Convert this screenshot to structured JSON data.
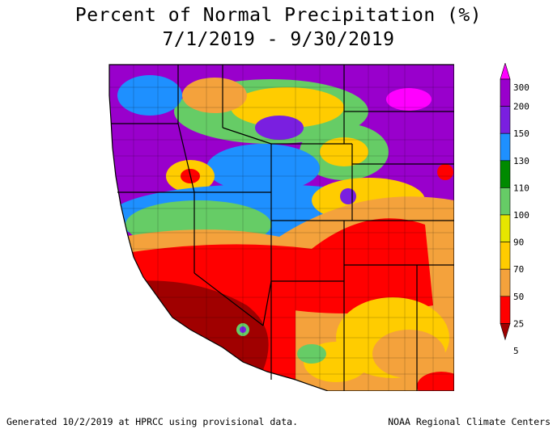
{
  "title": {
    "line1": "Percent of Normal Precipitation (%)",
    "line2": "7/1/2019 - 9/30/2019"
  },
  "legend": {
    "entries": [
      {
        "label": "300",
        "color": "#ff00ff"
      },
      {
        "label": "200",
        "color": "#9900cc"
      },
      {
        "label": "150",
        "color": "#7a1fe0"
      },
      {
        "label": "130",
        "color": "#1e90ff"
      },
      {
        "label": "110",
        "color": "#008a00"
      },
      {
        "label": "100",
        "color": "#66cc66"
      },
      {
        "label": "90",
        "color": "#e6e600"
      },
      {
        "label": "70",
        "color": "#ffcc00"
      },
      {
        "label": "50",
        "color": "#f4a23c"
      },
      {
        "label": "25",
        "color": "#ff0000"
      },
      {
        "label": "5",
        "color": "#a00000"
      }
    ]
  },
  "footer": {
    "left": "Generated 10/2/2019 at HPRCC using provisional data.",
    "right": "NOAA Regional Climate Centers"
  }
}
